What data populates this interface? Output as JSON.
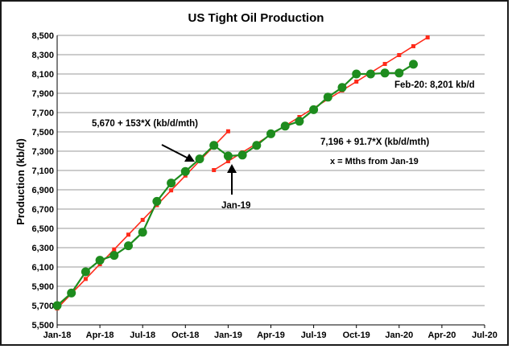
{
  "chart_data": {
    "type": "line",
    "title": "US Tight Oil Production",
    "xlabel": "",
    "ylabel": "Production (kb/d)",
    "x_ticks": [
      "Jan-18",
      "Apr-18",
      "Jul-18",
      "Oct-18",
      "Jan-19",
      "Apr-19",
      "Jul-19",
      "Oct-19",
      "Jan-20",
      "Apr-20",
      "Jul-20"
    ],
    "xlim": [
      "Jan-18",
      "Jul-20"
    ],
    "y_ticks": [
      "5,500",
      "5,700",
      "5,900",
      "6,100",
      "6,300",
      "6,500",
      "6,700",
      "6,900",
      "7,100",
      "7,300",
      "7,500",
      "7,700",
      "7,900",
      "8,100",
      "8,300",
      "8,500"
    ],
    "ylim": [
      5500,
      8500
    ],
    "grid": "horizontal",
    "legend": "none",
    "colors": {
      "actual": "#1e8c1e",
      "fit": "#ff2a1a"
    },
    "series": [
      {
        "style": "actual",
        "x": [
          "Jan-18",
          "Feb-18",
          "Mar-18",
          "Apr-18",
          "May-18",
          "Jun-18",
          "Jul-18",
          "Aug-18",
          "Sep-18",
          "Oct-18",
          "Nov-18",
          "Dec-18",
          "Jan-19",
          "Feb-19",
          "Mar-19",
          "Apr-19",
          "May-19",
          "Jun-19",
          "Jul-19",
          "Aug-19",
          "Sep-19",
          "Oct-19",
          "Nov-19",
          "Dec-19",
          "Jan-20",
          "Feb-20"
        ],
        "y": [
          5700,
          5830,
          6050,
          6170,
          6220,
          6320,
          6460,
          6780,
          6970,
          7090,
          7220,
          7360,
          7250,
          7260,
          7360,
          7480,
          7560,
          7610,
          7730,
          7860,
          7960,
          8100,
          8100,
          8110,
          8110,
          8201
        ]
      },
      {
        "style": "fit",
        "x": [
          "Jan-18",
          "Feb-18",
          "Mar-18",
          "Apr-18",
          "May-18",
          "Jun-18",
          "Jul-18",
          "Aug-18",
          "Sep-18",
          "Oct-18",
          "Nov-18",
          "Dec-18",
          "Jan-19"
        ],
        "y": [
          5670,
          5823,
          5976,
          6129,
          6282,
          6435,
          6588,
          6741,
          6894,
          7047,
          7200,
          7353,
          7506
        ]
      },
      {
        "style": "fit",
        "x": [
          "Dec-18",
          "Jan-19",
          "Feb-19",
          "Mar-19",
          "Apr-19",
          "May-19",
          "Jun-19",
          "Jul-19",
          "Aug-19",
          "Sep-19",
          "Oct-19",
          "Nov-19",
          "Dec-19",
          "Jan-20",
          "Feb-20",
          "Mar-20"
        ],
        "y": [
          7104,
          7196,
          7288,
          7379,
          7471,
          7563,
          7654,
          7746,
          7838,
          7929,
          8021,
          8113,
          8204,
          8296,
          8388,
          8479
        ]
      }
    ],
    "annotations": [
      {
        "text": "5,670 + 153*X (kb/d/mth)"
      },
      {
        "text": "7,196 + 91.7*X (kb/d/mth)"
      },
      {
        "text": "x = Mths from Jan-19"
      },
      {
        "text": "Jan-19"
      },
      {
        "text": "Feb-20: 8,201 kb/d"
      }
    ]
  }
}
